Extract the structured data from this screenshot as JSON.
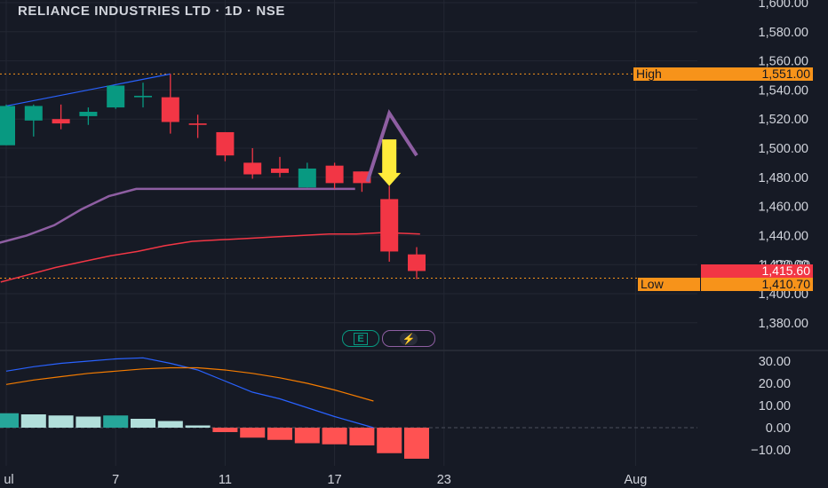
{
  "title": "RELIANCE INDUSTRIES LTD · 1D · NSE",
  "colors": {
    "background": "#161a25",
    "up": "#089981",
    "down": "#f23645",
    "ema_purple": "#8e5ea2",
    "ema_red": "#f23645",
    "annotation_yellow": "#ffeb3b",
    "macd_line": "#2962ff",
    "signal_line": "#f57c00",
    "hist_pos_strong": "#26a69a",
    "hist_pos_weak": "#b2dfdb",
    "hist_neg_strong": "#ff5252",
    "hist_neg_weak": "#ffcdd2",
    "tag_orange": "#f7931a"
  },
  "tags": {
    "high_label": "High",
    "high_value": "1,551.00",
    "low_label": "Low",
    "low_value": "1,410.70",
    "last_value": "1,415.60",
    "last_value_behind": "1,420.00"
  },
  "badges": {
    "earnings": "E",
    "dividend": "⚡"
  },
  "chart_data": [
    {
      "type": "candlestick",
      "title": "RELIANCE INDUSTRIES LTD · 1D · NSE",
      "yticks": [
        "1,600.00",
        "1,580.00",
        "1,560.00",
        "1,540.00",
        "1,520.00",
        "1,500.00",
        "1,480.00",
        "1,460.00",
        "1,440.00",
        "1,420.00",
        "1,400.00",
        "1,380.00"
      ],
      "ylim": [
        1370,
        1605
      ],
      "xticks": [
        {
          "label": "ul",
          "bar": 0
        },
        {
          "label": "7",
          "bar": 4
        },
        {
          "label": "11",
          "bar": 8
        },
        {
          "label": "17",
          "bar": 12
        },
        {
          "label": "23",
          "bar": 16
        },
        {
          "label": "Aug",
          "bar": 23
        }
      ],
      "high_line": 1551.0,
      "low_line": 1410.7,
      "candles": [
        {
          "o": 1502,
          "h": 1530,
          "l": 1502,
          "c": 1529
        },
        {
          "o": 1519,
          "h": 1530,
          "l": 1508,
          "c": 1529
        },
        {
          "o": 1520,
          "h": 1530,
          "l": 1513,
          "c": 1517
        },
        {
          "o": 1522,
          "h": 1528,
          "l": 1516,
          "c": 1525
        },
        {
          "o": 1528,
          "h": 1542,
          "l": 1527,
          "c": 1543
        },
        {
          "o": 1535,
          "h": 1545,
          "l": 1528,
          "c": 1536
        },
        {
          "o": 1535,
          "h": 1551,
          "l": 1510,
          "c": 1518
        },
        {
          "o": 1517,
          "h": 1523,
          "l": 1507,
          "c": 1516
        },
        {
          "o": 1511,
          "h": 1511,
          "l": 1491,
          "c": 1495
        },
        {
          "o": 1490,
          "h": 1500,
          "l": 1479,
          "c": 1482
        },
        {
          "o": 1486,
          "h": 1494,
          "l": 1480,
          "c": 1483
        },
        {
          "o": 1473,
          "h": 1490,
          "l": 1473,
          "c": 1486
        },
        {
          "o": 1488,
          "h": 1490,
          "l": 1472,
          "c": 1476
        },
        {
          "o": 1484,
          "h": 1484,
          "l": 1470,
          "c": 1476
        },
        {
          "o": 1465,
          "h": 1474,
          "l": 1422,
          "c": 1429
        },
        {
          "o": 1427,
          "h": 1432,
          "l": 1410,
          "c": 1415.6
        }
      ],
      "ema_purple": [
        1435,
        1440,
        1447,
        1458,
        1467,
        1472,
        1472,
        1472,
        1472,
        1472,
        1472,
        1472,
        1472,
        1472
      ],
      "ema_red": [
        1408,
        1413,
        1418,
        1422,
        1426,
        1429,
        1433,
        1436,
        1437,
        1438,
        1439,
        1440,
        1441,
        1441,
        1442,
        1441
      ],
      "annotation": {
        "peak": 1524,
        "start": 1477,
        "end": 1495
      }
    },
    {
      "type": "bar",
      "title": "MACD",
      "yticks": [
        "30.00",
        "20.00",
        "10.00",
        "0.00",
        "−10.00"
      ],
      "ylim": [
        -14,
        33
      ],
      "histogram": [
        6.5,
        6.0,
        5.5,
        5.0,
        5.5,
        4.0,
        3.0,
        1.0,
        -2.0,
        -4.5,
        -5.5,
        -7.0,
        -7.5,
        -8.0,
        -11.5,
        -14.0
      ],
      "macd": [
        25.5,
        27.5,
        29.0,
        30.0,
        31.0,
        31.5,
        29.0,
        26.0,
        21.0,
        16.0,
        13.0,
        9.0,
        5.0,
        0.0
      ],
      "signal": [
        19.5,
        21.5,
        23.0,
        24.5,
        25.5,
        26.5,
        27.0,
        27.0,
        26.0,
        24.5,
        22.5,
        20.0,
        17.0,
        12.0
      ]
    }
  ]
}
